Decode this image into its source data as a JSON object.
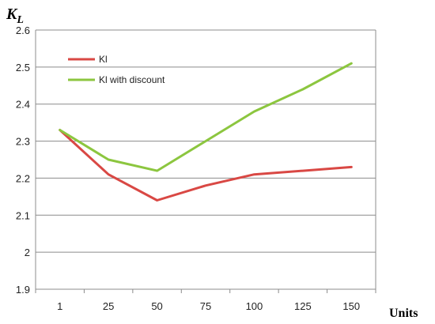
{
  "chart_data": {
    "type": "line",
    "title": "",
    "ylabel_main": "K",
    "ylabel_sub": "L",
    "xlabel": "Units",
    "categories": [
      "1",
      "25",
      "50",
      "75",
      "100",
      "125",
      "150"
    ],
    "ylim": [
      1.9,
      2.6
    ],
    "yticks": [
      "1.9",
      "2",
      "2.1",
      "2.2",
      "2.3",
      "2.4",
      "2.5",
      "2.6"
    ],
    "grid": true,
    "legend_position": "top-left",
    "series": [
      {
        "name": "Kl",
        "color": "#d94844",
        "values": [
          2.33,
          2.21,
          2.14,
          2.18,
          2.21,
          2.22,
          2.23
        ]
      },
      {
        "name": "Kl with discount",
        "color": "#8cc63f",
        "values": [
          2.33,
          2.25,
          2.22,
          2.3,
          2.38,
          2.44,
          2.51
        ]
      }
    ]
  }
}
